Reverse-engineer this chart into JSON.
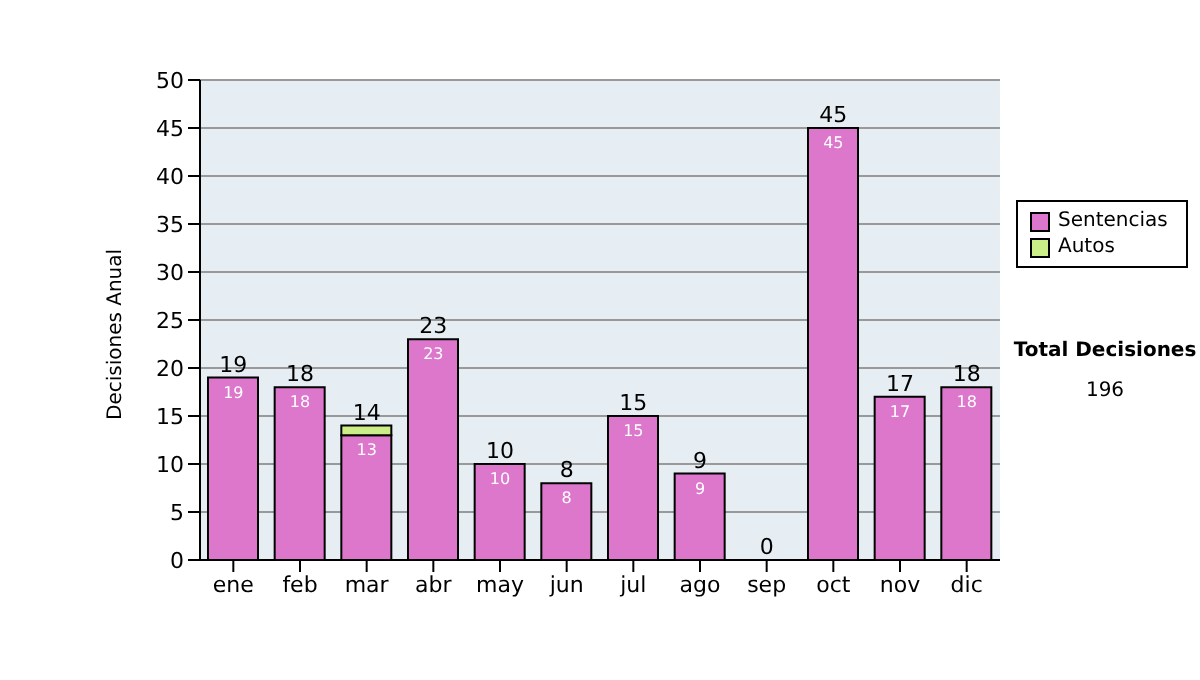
{
  "chart_data": {
    "type": "bar",
    "stacked": true,
    "ylabel": "Decisiones Anual",
    "categories": [
      "ene",
      "feb",
      "mar",
      "abr",
      "may",
      "jun",
      "jul",
      "ago",
      "sep",
      "oct",
      "nov",
      "dic"
    ],
    "series": [
      {
        "name": "Sentencias",
        "color": "#dd77cc",
        "values": [
          19,
          18,
          13,
          23,
          10,
          8,
          15,
          9,
          0,
          45,
          17,
          18
        ],
        "value_labels": [
          "19",
          "18",
          "13",
          "23",
          "10",
          "8",
          "15",
          "9",
          null,
          "45",
          "17",
          "18"
        ]
      },
      {
        "name": "Autos",
        "color": "#ccee88",
        "values": [
          0,
          0,
          1,
          0,
          0,
          0,
          0,
          0,
          0,
          0,
          0,
          0
        ]
      }
    ],
    "totals": [
      "19",
      "18",
      "14",
      "23",
      "10",
      "8",
      "15",
      "9",
      "0",
      "45",
      "17",
      "18"
    ],
    "ylim": [
      0,
      50
    ],
    "yticks": [
      0,
      5,
      10,
      15,
      20,
      25,
      30,
      35,
      40,
      45,
      50
    ],
    "grid": "y",
    "legend": "right",
    "annotations": [
      "Total Decisiones",
      "196"
    ]
  }
}
